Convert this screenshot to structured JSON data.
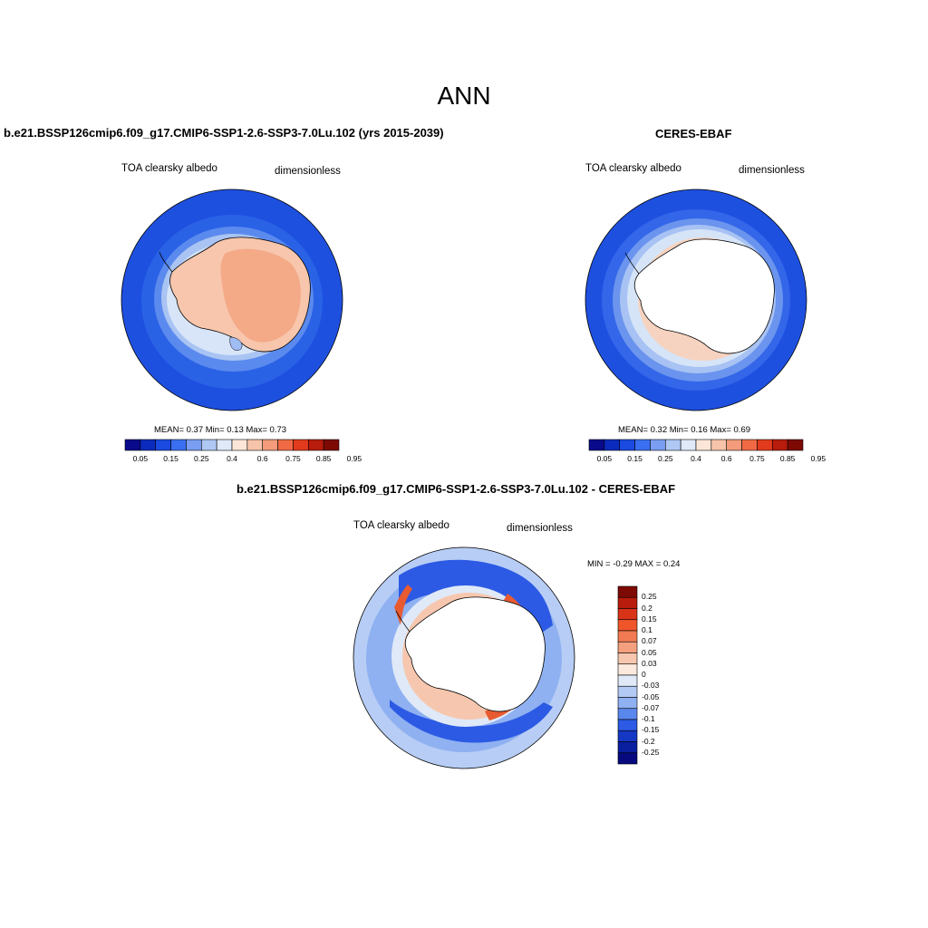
{
  "main_title": "ANN",
  "panels": {
    "model": {
      "title": "b.e21.BSSP126cmip6.f09_g17.CMIP6-SSP1-2.6-SSP3-7.0Lu.102 (yrs 2015-2039)",
      "field": "TOA clearsky albedo",
      "units": "dimensionless",
      "stats": "MEAN=   0.37  Min=   0.13  Max=   0.73"
    },
    "obs": {
      "title": "CERES-EBAF",
      "field": "TOA clearsky albedo",
      "units": "dimensionless",
      "stats": "MEAN=   0.32  Min=   0.16  Max=   0.69"
    },
    "diff": {
      "title": "b.e21.BSSP126cmip6.f09_g17.CMIP6-SSP1-2.6-SSP3-7.0Lu.102 - CERES-EBAF",
      "field": "TOA clearsky albedo",
      "units": "dimensionless",
      "stats": "MIN =  -0.29 MAX =   0.24"
    }
  },
  "colorbars": {
    "abs_labels": [
      "0.05",
      "0.15",
      "0.25",
      "0.4",
      "0.6",
      "0.75",
      "0.85",
      "0.95"
    ],
    "abs_colors": [
      "#0a0a8c",
      "#0b2bbd",
      "#1a4ae0",
      "#3a6ff0",
      "#7a9ef2",
      "#b0c8f4",
      "#dfe9f8",
      "#fbe6d8",
      "#f6c4ab",
      "#f39b7b",
      "#ef6a45",
      "#e23a1c",
      "#b81c0c",
      "#7e0a05"
    ],
    "diff_labels": [
      "0.25",
      "0.2",
      "0.15",
      "0.1",
      "0.07",
      "0.05",
      "0.03",
      "0",
      "-0.03",
      "-0.05",
      "-0.07",
      "-0.1",
      "-0.15",
      "-0.2",
      "-0.25"
    ],
    "diff_colors": [
      "#7e0a05",
      "#b81c0c",
      "#d93418",
      "#f0552a",
      "#f27a52",
      "#f4a07f",
      "#f6c7ae",
      "#fbe9dd",
      "#dfe9f8",
      "#b3cbf4",
      "#8fb1f1",
      "#5a87ec",
      "#2c5ae4",
      "#1538c4",
      "#0a1fa0",
      "#060a7e"
    ]
  }
}
